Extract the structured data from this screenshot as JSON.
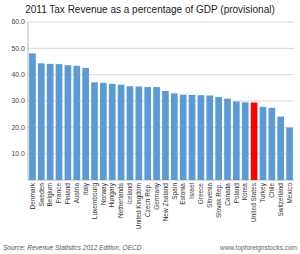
{
  "chart_data": {
    "type": "bar",
    "title": "2011 Tax Revenue as a percentage of GDP (provisional)",
    "annotations": [
      "Source: Revenue Statistics 2012 Edition, OECD",
      "www.topforeignstocks.com"
    ],
    "categories": [
      "Denmark",
      "Sweden",
      "Belgium",
      "France",
      "Finland",
      "Austria",
      "Italy",
      "Luxembourg",
      "Norway",
      "Hungary",
      "Netherlands",
      "Iceland",
      "United Kingdom",
      "Czech Rep.",
      "Germany",
      "New Zealand",
      "Spain",
      "Estonia",
      "Israel",
      "Greece",
      "Slovenia",
      "Slovak Rep.",
      "Canada",
      "Poland",
      "Korea",
      "United States",
      "Turkey",
      "Chile",
      "Switzerland",
      "Mexico"
    ],
    "values": [
      48.1,
      44.3,
      44.1,
      44.0,
      43.6,
      43.4,
      42.6,
      37.1,
      36.9,
      36.5,
      36.2,
      35.6,
      35.5,
      35.3,
      35.3,
      33.8,
      32.9,
      32.4,
      32.3,
      32.2,
      32.1,
      31.5,
      30.9,
      29.8,
      29.5,
      29.4,
      27.8,
      27.4,
      24.1,
      19.9
    ],
    "colors": [
      "#5B9BD5",
      "#5B9BD5",
      "#5B9BD5",
      "#5B9BD5",
      "#5B9BD5",
      "#5B9BD5",
      "#5B9BD5",
      "#5B9BD5",
      "#5B9BD5",
      "#5B9BD5",
      "#5B9BD5",
      "#5B9BD5",
      "#5B9BD5",
      "#5B9BD5",
      "#5B9BD5",
      "#5B9BD5",
      "#5B9BD5",
      "#5B9BD5",
      "#5B9BD5",
      "#5B9BD5",
      "#5B9BD5",
      "#5B9BD5",
      "#5B9BD5",
      "#5B9BD5",
      "#5B9BD5",
      "#FF0000",
      "#5B9BD5",
      "#5B9BD5",
      "#5B9BD5",
      "#5B9BD5"
    ],
    "ylim": [
      0,
      60
    ],
    "yticks": [
      {
        "value": 10,
        "label": "10.0"
      },
      {
        "value": 20,
        "label": "20.0"
      },
      {
        "value": 30,
        "label": "30.0"
      },
      {
        "value": 40,
        "label": "40.0"
      },
      {
        "value": 50,
        "label": "50.0"
      },
      {
        "value": 60,
        "label": "60.0"
      }
    ],
    "grid": true
  }
}
